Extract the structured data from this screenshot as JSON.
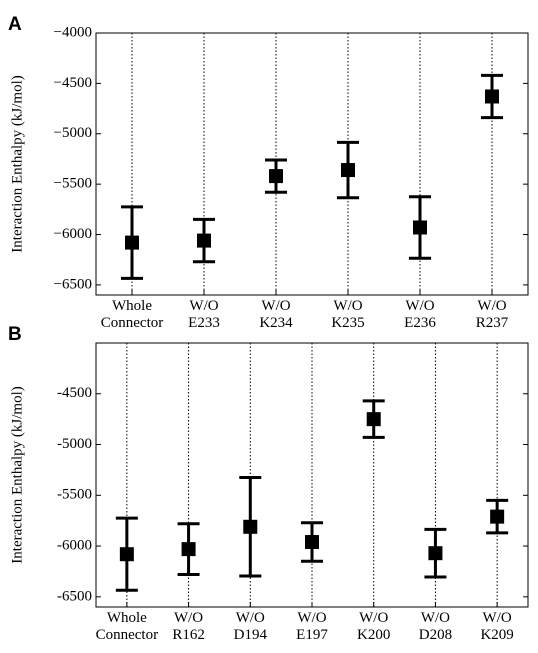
{
  "chart_data": [
    {
      "type": "errorbar",
      "panel_label": "A",
      "ylabel": "Interaction Enthalpy (kJ/mol)",
      "categories": [
        "Whole Connector",
        "W/O E233",
        "W/O K234",
        "W/O K235",
        "W/O E236",
        "W/O R237"
      ],
      "values": [
        -6080,
        -6060,
        -5420,
        -5360,
        -5930,
        -4630
      ],
      "errors": [
        355,
        210,
        160,
        275,
        305,
        210
      ],
      "color": "#000000",
      "ylim": [
        -6600,
        -4000
      ],
      "yticks": [
        {
          "value": -6500,
          "label": "−6500"
        },
        {
          "value": -6000,
          "label": "−6000"
        },
        {
          "value": -5500,
          "label": "−5500"
        },
        {
          "value": -5000,
          "label": "−5000"
        },
        {
          "value": -4500,
          "label": "−4500"
        },
        {
          "value": -4000,
          "label": "−4000"
        }
      ],
      "grid": true
    },
    {
      "type": "errorbar",
      "panel_label": "B",
      "ylabel": "Interaction Enthalpy (kJ/mol)",
      "categories": [
        "Whole Connector",
        "W/O R162",
        "W/O D194",
        "W/O E197",
        "W/O K200",
        "W/O D208",
        "W/O K209"
      ],
      "values": [
        -6080,
        -6030,
        -5810,
        -5960,
        -4750,
        -6070,
        -5710
      ],
      "errors": [
        355,
        250,
        485,
        190,
        180,
        235,
        160
      ],
      "color": "#000000",
      "ylim": [
        -6600,
        -4000
      ],
      "yticks": [
        -6500,
        -6000,
        -5500,
        -5000,
        -4500
      ],
      "grid": true
    }
  ]
}
